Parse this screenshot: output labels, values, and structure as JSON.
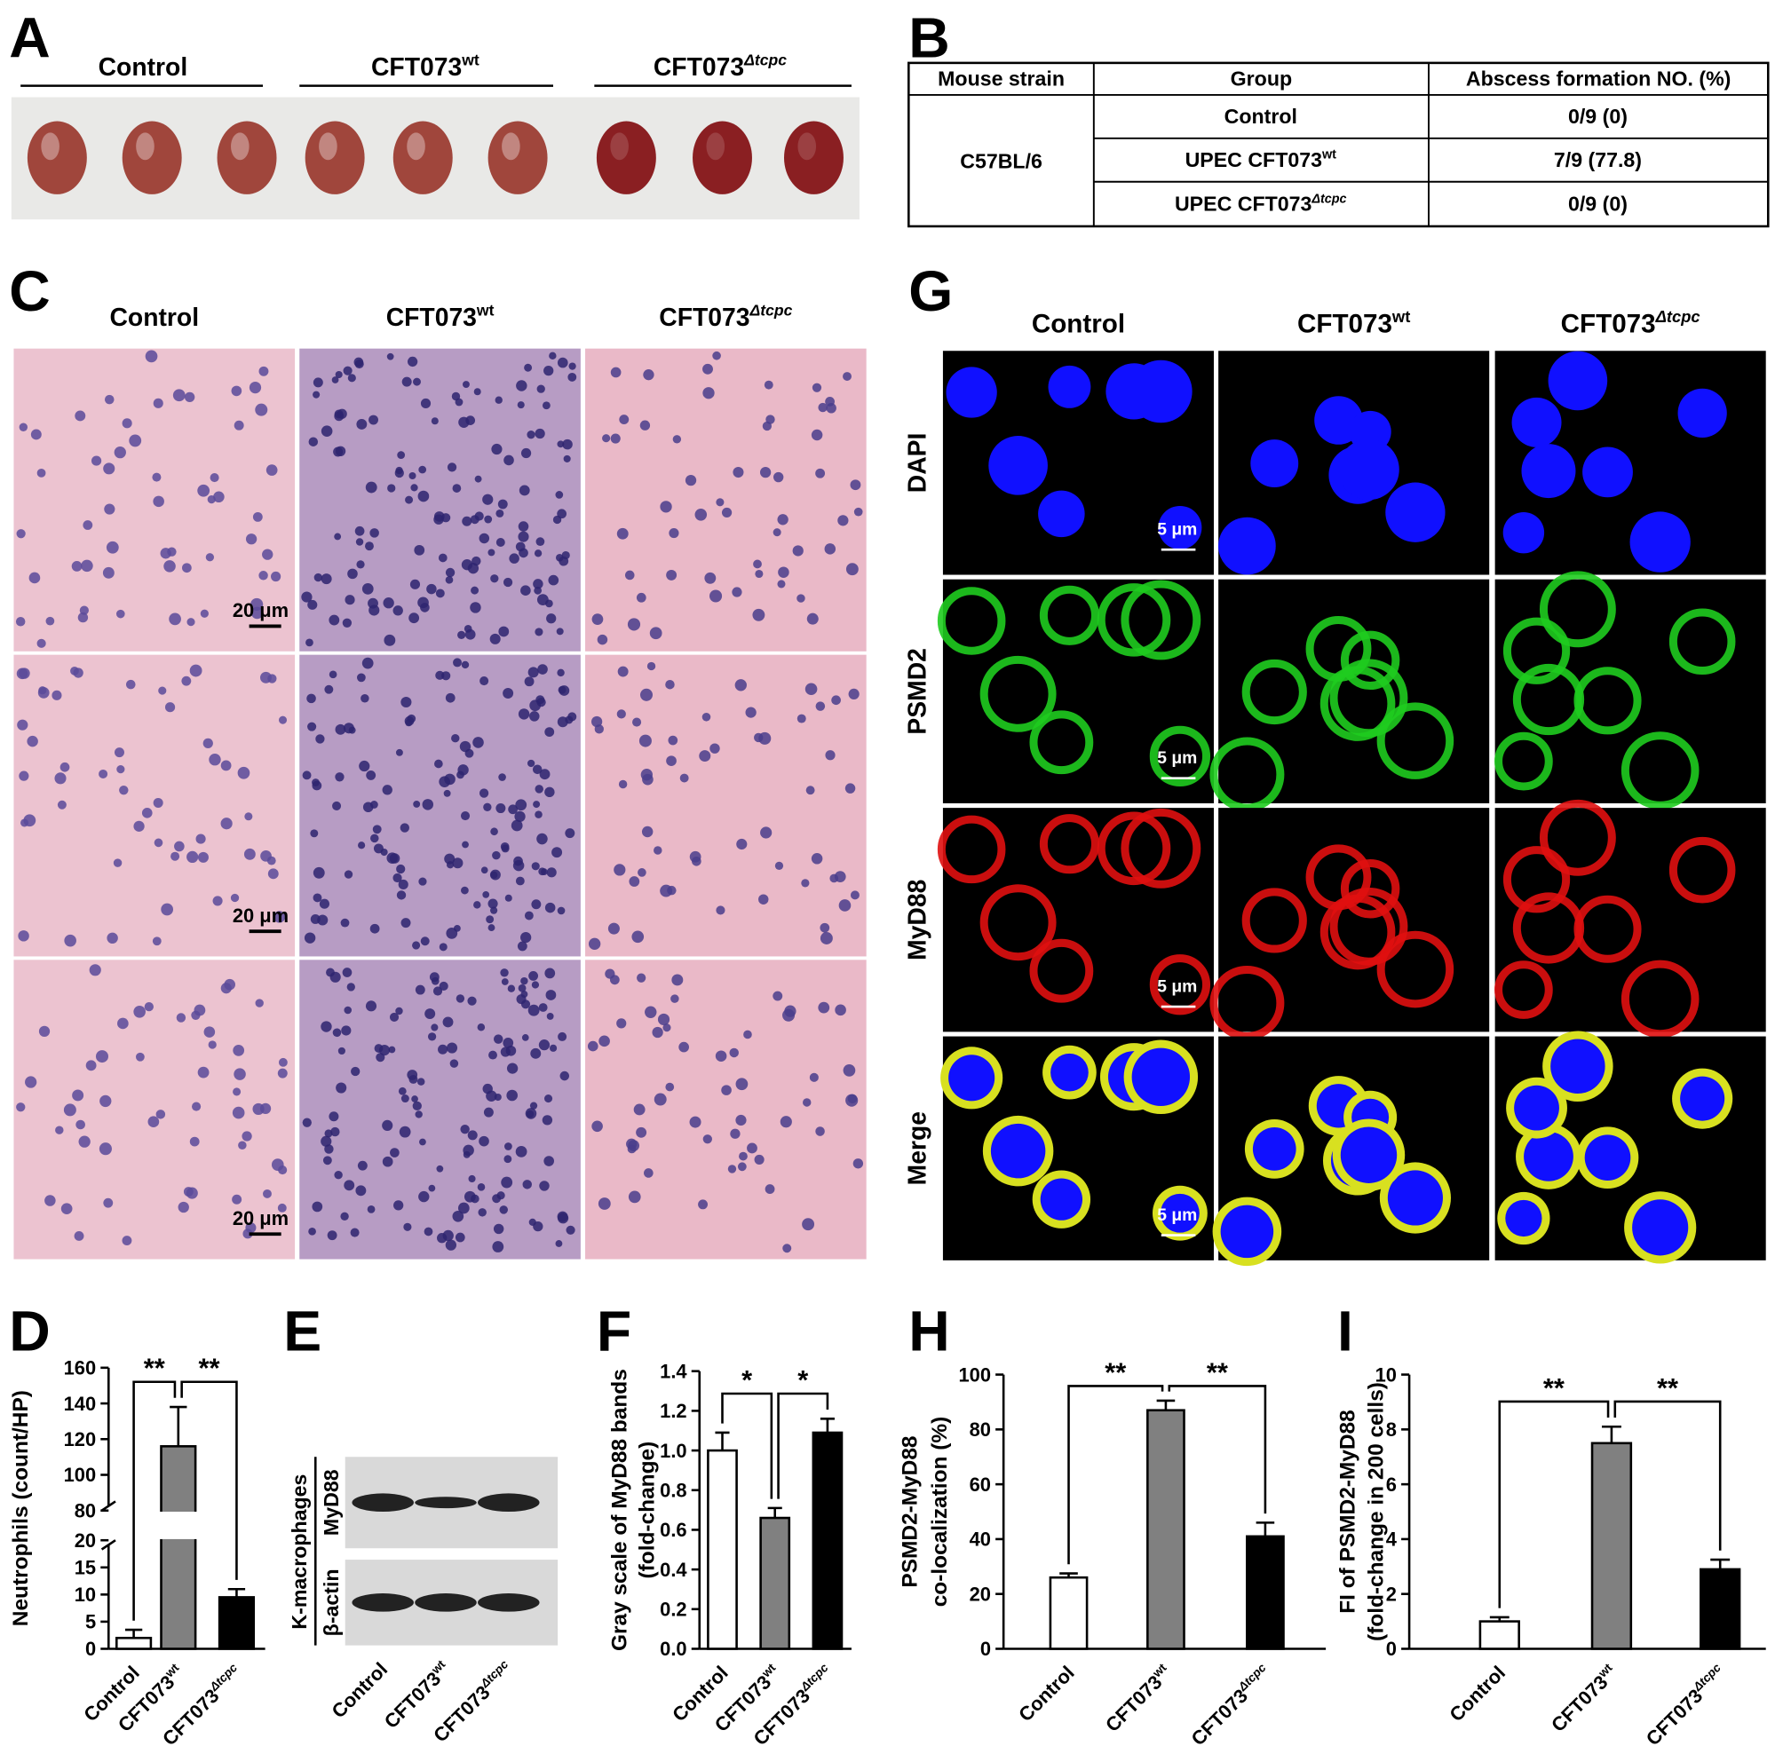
{
  "panel_letters": [
    "A",
    "B",
    "C",
    "D",
    "E",
    "F",
    "G",
    "H",
    "I"
  ],
  "panel_a": {
    "groups": [
      {
        "text": "Control"
      },
      {
        "text": "CFT073",
        "sup": "wt"
      },
      {
        "text": "CFT073",
        "sup": "Δtcpc"
      }
    ]
  },
  "panel_b": {
    "header": [
      "Mouse strain",
      "Group",
      "Abscess formation NO. (%)"
    ],
    "strain": "C57BL/6",
    "rows": [
      {
        "group": {
          "text": "Control"
        },
        "abscess": "0/9 (0)"
      },
      {
        "group": {
          "text": "UPEC CFT073",
          "sup": "wt"
        },
        "abscess": "7/9 (77.8)"
      },
      {
        "group": {
          "text": "UPEC CFT073",
          "sup": "Δtcpc"
        },
        "abscess": "0/9 (0)"
      }
    ]
  },
  "panel_c": {
    "columns": [
      {
        "text": "Control"
      },
      {
        "text": "CFT073",
        "sup": "wt"
      },
      {
        "text": "CFT073",
        "sup": "Δtcpc"
      }
    ],
    "scale_bars": [
      "20 μm",
      "20 μm",
      "20 μm"
    ]
  },
  "panel_e": {
    "cell_type": "K-macrophages",
    "proteins": [
      "MyD88",
      "β-actin"
    ],
    "lanes": [
      "Control",
      "CFT073",
      "CFT073"
    ],
    "lane_superscripts": [
      null,
      "wt",
      "Δtcpc"
    ]
  },
  "panel_g": {
    "columns": [
      {
        "text": "Control"
      },
      {
        "text": "CFT073",
        "sup": "wt"
      },
      {
        "text": "CFT073",
        "sup": "Δtcpc"
      }
    ],
    "rows": [
      "DAPI",
      "PSMD2",
      "MyD88",
      "Merge"
    ],
    "scale_bars": [
      "5 μm",
      "5 μm",
      "5 μm",
      "5 μm"
    ]
  },
  "chart_data": [
    {
      "type": "bar",
      "ylabel": [
        "Neutrophils (count/HP)"
      ],
      "categories": [
        "Control",
        "CFT073",
        "CFT073"
      ],
      "category_superscripts": [
        null,
        "wt",
        "Δtcpc"
      ],
      "values": [
        2,
        116,
        9.5
      ],
      "errors": [
        1.5,
        22,
        1.5
      ],
      "colors": [
        "#ffffff",
        "#808080",
        "#000000"
      ],
      "ylim": [
        0,
        160
      ],
      "axis_break": [
        20,
        80
      ],
      "yticks": [
        0,
        5,
        10,
        15,
        20,
        80,
        100,
        120,
        140,
        160
      ],
      "significance": [
        {
          "label": "**",
          "between": [
            0,
            1
          ]
        },
        {
          "label": "**",
          "between": [
            1,
            2
          ]
        }
      ]
    },
    {
      "type": "bar",
      "ylabel": [
        "Gray scale of MyD88 bands",
        "(fold-change)"
      ],
      "categories": [
        "Control",
        "CFT073",
        "CFT073"
      ],
      "category_superscripts": [
        null,
        "wt",
        "Δtcpc"
      ],
      "values": [
        1.0,
        0.66,
        1.09
      ],
      "errors": [
        0.09,
        0.05,
        0.07
      ],
      "colors": [
        "#ffffff",
        "#808080",
        "#000000"
      ],
      "ylim": [
        0,
        1.4
      ],
      "yticks": [
        {
          "value": 0,
          "label": "0.0"
        },
        0.2,
        0.4,
        0.6,
        0.8,
        {
          "value": 1,
          "label": "1.0"
        },
        1.2,
        1.4
      ],
      "significance": [
        {
          "label": "*",
          "between": [
            0,
            1
          ]
        },
        {
          "label": "*",
          "between": [
            1,
            2
          ]
        }
      ]
    },
    {
      "type": "bar",
      "ylabel": [
        "PSMD2-MyD88",
        "co-localization (%)"
      ],
      "categories": [
        "Control",
        "CFT073",
        "CFT073"
      ],
      "category_superscripts": [
        null,
        "wt",
        "Δtcpc"
      ],
      "values": [
        26,
        87,
        41
      ],
      "errors": [
        1.5,
        3.5,
        5
      ],
      "colors": [
        "#ffffff",
        "#808080",
        "#000000"
      ],
      "ylim": [
        0,
        100
      ],
      "yticks": [
        0,
        20,
        40,
        60,
        80,
        100
      ],
      "significance": [
        {
          "label": "**",
          "between": [
            0,
            1
          ]
        },
        {
          "label": "**",
          "between": [
            1,
            2
          ]
        }
      ]
    },
    {
      "type": "bar",
      "ylabel": [
        "FI of PSMD2-MyD88",
        "(fold-change in 200 cells)"
      ],
      "categories": [
        "Control",
        "CFT073",
        "CFT073"
      ],
      "category_superscripts": [
        null,
        "wt",
        "Δtcpc"
      ],
      "values": [
        1.0,
        7.5,
        2.9
      ],
      "errors": [
        0.15,
        0.6,
        0.35
      ],
      "colors": [
        "#ffffff",
        "#808080",
        "#000000"
      ],
      "ylim": [
        0,
        10
      ],
      "yticks": [
        0,
        2,
        4,
        6,
        8,
        10
      ],
      "significance": [
        {
          "label": "**",
          "between": [
            0,
            1
          ]
        },
        {
          "label": "**",
          "between": [
            1,
            2
          ]
        }
      ]
    }
  ]
}
